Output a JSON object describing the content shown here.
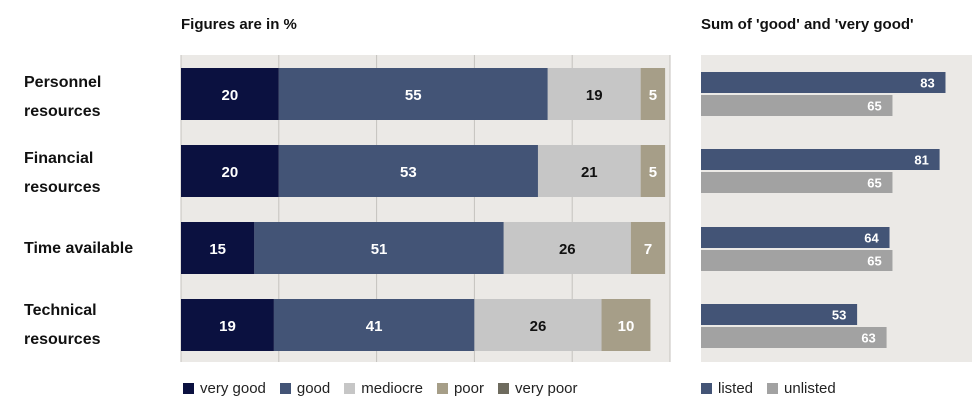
{
  "chart_data": [
    {
      "type": "bar",
      "orientation": "horizontal",
      "stacked": true,
      "title": "Figures are in %",
      "categories": [
        "Personnel resources",
        "Financial resources",
        "Time available",
        "Technical resources"
      ],
      "series": [
        {
          "name": "very good",
          "values": [
            20,
            20,
            15,
            19
          ]
        },
        {
          "name": "good",
          "values": [
            55,
            53,
            51,
            41
          ]
        },
        {
          "name": "mediocre",
          "values": [
            19,
            21,
            26,
            26
          ]
        },
        {
          "name": "poor",
          "values": [
            5,
            5,
            7,
            10
          ]
        },
        {
          "name": "very poor",
          "values": [
            0,
            0,
            0,
            0
          ]
        }
      ],
      "xlim": [
        0,
        100
      ],
      "grid": true,
      "legend_position": "bottom",
      "colors": [
        "#0b1140",
        "#435476",
        "#c6c6c6",
        "#a69e88",
        "#6e6b5e"
      ]
    },
    {
      "type": "bar",
      "orientation": "horizontal",
      "title": "Sum of 'good' and 'very good'",
      "categories": [
        "Personnel resources",
        "Financial resources",
        "Time available",
        "Technical resources"
      ],
      "series": [
        {
          "name": "listed",
          "values": [
            83,
            81,
            64,
            53
          ]
        },
        {
          "name": "unlisted",
          "values": [
            65,
            65,
            65,
            63
          ]
        }
      ],
      "xlim": [
        0,
        92
      ],
      "legend_position": "bottom",
      "colors": [
        "#435476",
        "#a2a2a2"
      ]
    }
  ],
  "row_labels": [
    [
      "Personnel",
      "resources"
    ],
    [
      "Financial",
      "resources"
    ],
    [
      "Time available"
    ],
    [
      "Technical",
      "resources"
    ]
  ]
}
